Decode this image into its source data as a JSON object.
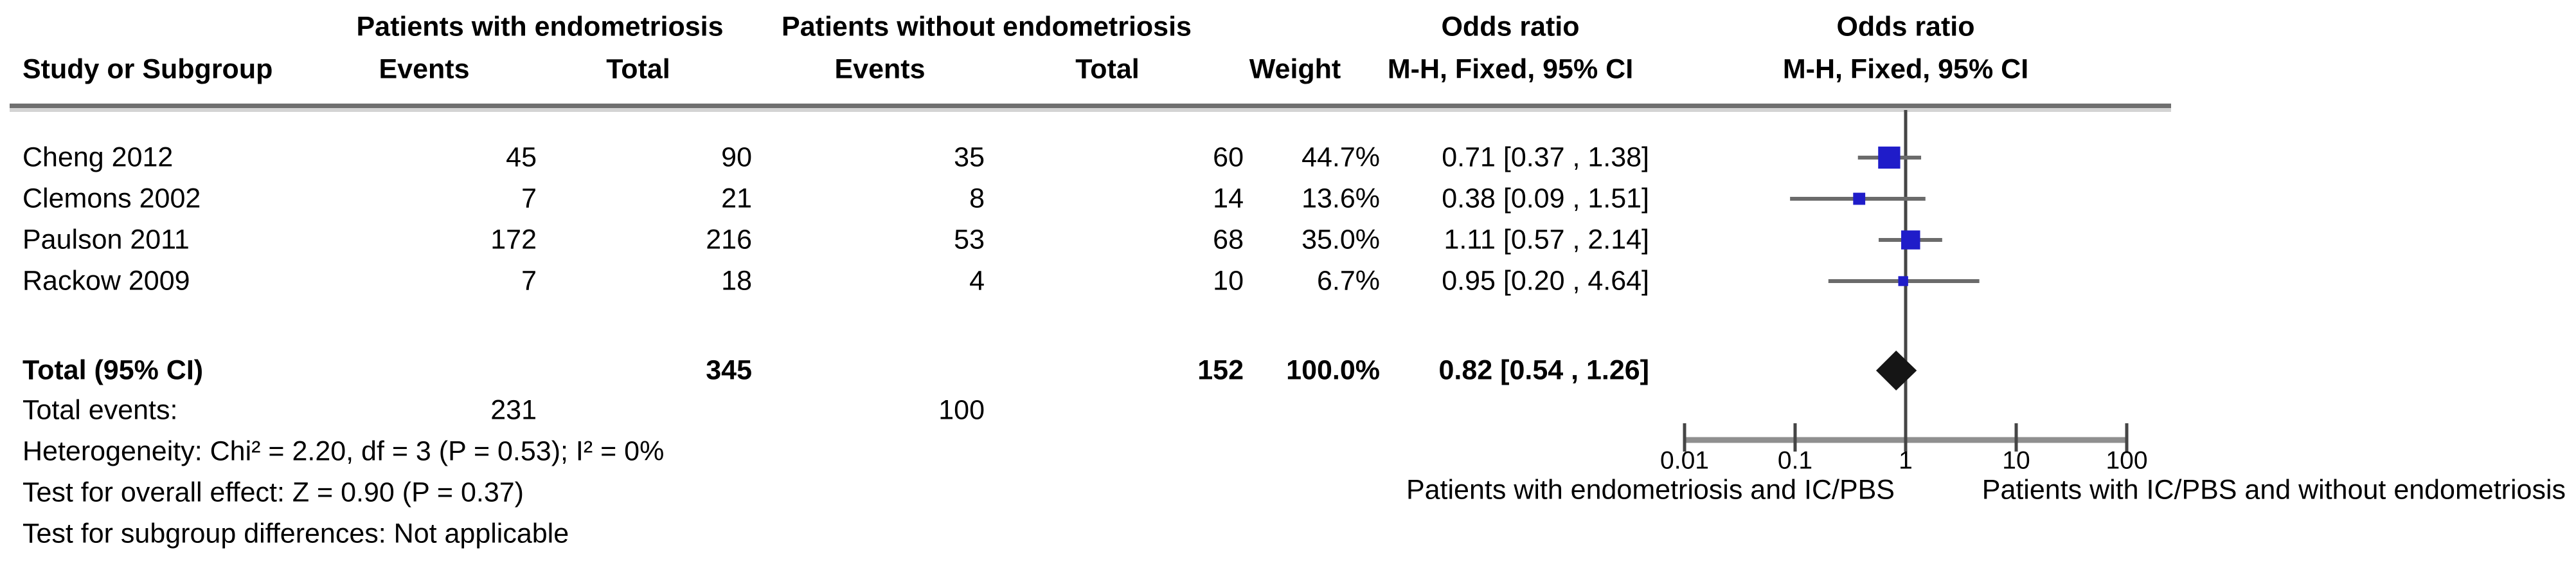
{
  "header": {
    "study_col": "Study or Subgroup",
    "group1": "Patients with endometriosis",
    "group2": "Patients without endometriosis",
    "events1": "Events",
    "total1": "Total",
    "events2": "Events",
    "total2": "Total",
    "weight": "Weight",
    "or_title_text_col": "Odds ratio",
    "or_subtitle_text_col": "M-H, Fixed, 95% CI",
    "or_title_plot_col": "Odds ratio",
    "or_subtitle_plot_col": "M-H, Fixed, 95% CI"
  },
  "rows": [
    {
      "study": "Cheng 2012",
      "events1": "45",
      "total1": "90",
      "events2": "35",
      "total2": "60",
      "weight": "44.7%",
      "ci_text": "0.71 [0.37 , 1.38]"
    },
    {
      "study": "Clemons 2002",
      "events1": "7",
      "total1": "21",
      "events2": "8",
      "total2": "14",
      "weight": "13.6%",
      "ci_text": "0.38 [0.09 , 1.51]"
    },
    {
      "study": "Paulson 2011",
      "events1": "172",
      "total1": "216",
      "events2": "53",
      "total2": "68",
      "weight": "35.0%",
      "ci_text": "1.11 [0.57 , 2.14]"
    },
    {
      "study": "Rackow 2009",
      "events1": "7",
      "total1": "18",
      "events2": "4",
      "total2": "10",
      "weight": "6.7%",
      "ci_text": "0.95 [0.20 , 4.64]"
    }
  ],
  "totals": {
    "label": "Total (95% CI)",
    "total1": "345",
    "total2": "152",
    "weight": "100.0%",
    "ci_text": "0.82 [0.54 , 1.26]",
    "events_label": "Total events:",
    "events1": "231",
    "events2": "100"
  },
  "footnotes": [
    "Heterogeneity: Chi² = 2.20, df = 3 (P = 0.53); I² = 0%",
    "Test for overall effect: Z = 0.90 (P = 0.37)",
    "Test for subgroup differences: Not applicable"
  ],
  "axis": {
    "tick_labels": [
      "0.01",
      "0.1",
      "1",
      "10",
      "100"
    ],
    "caption_left": "Patients with endometriosis and IC/PBS",
    "caption_right": "Patients with IC/PBS and without endometriosis"
  },
  "colors": {
    "marker_blue": "#1f1cc9",
    "diamond_black": "#151515",
    "ci_line_gray": "#6b6b6b",
    "center_line_gray": "#454545",
    "axis_gray": "#8f8f8f",
    "rule_dark": "#6f6f6f",
    "rule_light": "#d4d4d4",
    "text_black": "#000000"
  },
  "chart_data": {
    "type": "forest",
    "effect_measure": "Odds ratio (M-H, Fixed, 95% CI)",
    "x_scale": "log10",
    "x_ticks": [
      0.01,
      0.1,
      1,
      10,
      100
    ],
    "xlim": [
      0.01,
      100
    ],
    "null_line": 1,
    "studies": [
      {
        "name": "Cheng 2012",
        "events_with": 45,
        "total_with": 90,
        "events_without": 35,
        "total_without": 60,
        "weight_pct": 44.7,
        "or": 0.71,
        "ci_low": 0.37,
        "ci_high": 1.38
      },
      {
        "name": "Clemons 2002",
        "events_with": 7,
        "total_with": 21,
        "events_without": 8,
        "total_without": 14,
        "weight_pct": 13.6,
        "or": 0.38,
        "ci_low": 0.09,
        "ci_high": 1.51
      },
      {
        "name": "Paulson 2011",
        "events_with": 172,
        "total_with": 216,
        "events_without": 53,
        "total_without": 68,
        "weight_pct": 35.0,
        "or": 1.11,
        "ci_low": 0.57,
        "ci_high": 2.14
      },
      {
        "name": "Rackow 2009",
        "events_with": 7,
        "total_with": 18,
        "events_without": 4,
        "total_without": 10,
        "weight_pct": 6.7,
        "or": 0.95,
        "ci_low": 0.2,
        "ci_high": 4.64
      }
    ],
    "total": {
      "label": "Total (95% CI)",
      "total_with": 345,
      "total_without": 152,
      "total_events_with": 231,
      "total_events_without": 100,
      "weight_pct": 100.0,
      "or": 0.82,
      "ci_low": 0.54,
      "ci_high": 1.26
    },
    "heterogeneity": {
      "chi2": 2.2,
      "df": 3,
      "p": 0.53,
      "i2_pct": 0
    },
    "overall_effect": {
      "z": 0.9,
      "p": 0.37
    },
    "subgroup_differences": "Not applicable"
  }
}
